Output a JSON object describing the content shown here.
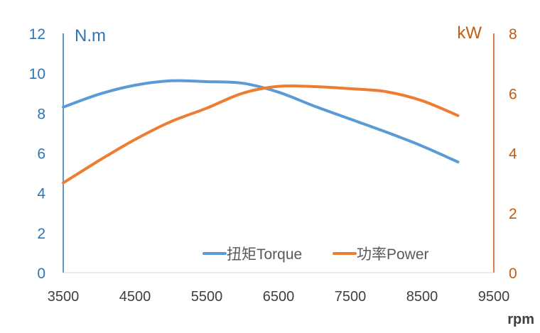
{
  "chart_data": {
    "type": "line",
    "xlabel": "rpm",
    "x_ticks": [
      "3500",
      "4500",
      "5500",
      "6500",
      "7500",
      "8500",
      "9500"
    ],
    "xlim": [
      3500,
      9500
    ],
    "y_left": {
      "unit": "N.m",
      "ticks": [
        "0",
        "2",
        "4",
        "6",
        "8",
        "10",
        "12"
      ],
      "ylim": [
        0,
        12
      ],
      "color": "#2E75B6"
    },
    "y_right": {
      "unit": "kW",
      "ticks": [
        "0",
        "2",
        "4",
        "6",
        "8"
      ],
      "ylim": [
        0,
        8
      ],
      "color": "#C55A11"
    },
    "grid": false,
    "legend_position": "bottom-right",
    "series": [
      {
        "name": "扭矩Torque",
        "axis": "left",
        "color": "#5B9BD5",
        "x": [
          3500,
          4000,
          4500,
          5000,
          5500,
          6000,
          6500,
          7000,
          7500,
          8000,
          8500,
          9000
        ],
        "values": [
          8.3,
          8.95,
          9.4,
          9.62,
          9.58,
          9.5,
          9.05,
          8.35,
          7.7,
          7.05,
          6.35,
          5.55
        ]
      },
      {
        "name": "功率Power",
        "axis": "right",
        "color": "#ED7D31",
        "x": [
          3500,
          4000,
          4500,
          5000,
          5500,
          6000,
          6500,
          7000,
          7500,
          8000,
          8500,
          9000
        ],
        "values": [
          3.0,
          3.75,
          4.45,
          5.05,
          5.5,
          6.0,
          6.23,
          6.22,
          6.15,
          6.05,
          5.75,
          5.25
        ]
      }
    ]
  }
}
